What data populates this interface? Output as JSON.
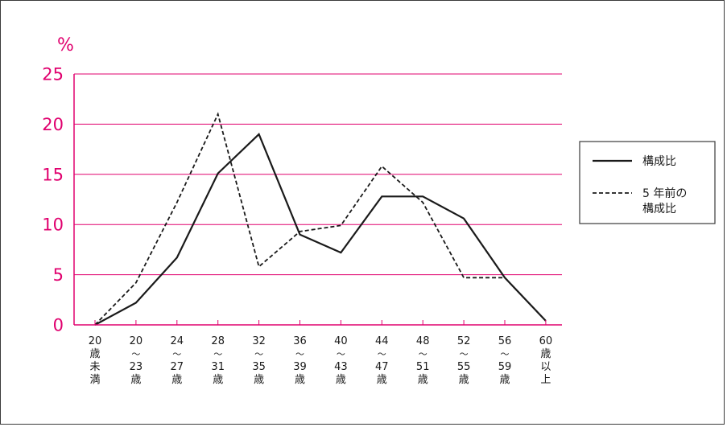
{
  "chart_data": {
    "type": "line",
    "y_unit": "%",
    "ylim": [
      0,
      25
    ],
    "yticks": [
      "0",
      "5",
      "10",
      "15",
      "20",
      "25"
    ],
    "grid": true,
    "legend_position": "right",
    "categories": [
      [
        "20",
        "歳",
        "未",
        "満"
      ],
      [
        "20",
        "〜",
        "23",
        "歳"
      ],
      [
        "24",
        "〜",
        "27",
        "歳"
      ],
      [
        "28",
        "〜",
        "31",
        "歳"
      ],
      [
        "32",
        "〜",
        "35",
        "歳"
      ],
      [
        "36",
        "〜",
        "39",
        "歳"
      ],
      [
        "40",
        "〜",
        "43",
        "歳"
      ],
      [
        "44",
        "〜",
        "47",
        "歳"
      ],
      [
        "48",
        "〜",
        "51",
        "歳"
      ],
      [
        "52",
        "〜",
        "55",
        "歳"
      ],
      [
        "56",
        "〜",
        "59",
        "歳"
      ],
      [
        "60",
        "歳",
        "以",
        "上"
      ]
    ],
    "series": [
      {
        "name": "構成比",
        "legend_lines": [
          "構成比"
        ],
        "style": "solid",
        "color": "#1a1a1a",
        "values": [
          0,
          2.2,
          6.7,
          15.1,
          19.0,
          9.0,
          7.2,
          12.8,
          12.8,
          10.6,
          4.7,
          0.4
        ]
      },
      {
        "name": "5 年前の構成比",
        "legend_lines": [
          "5 年前の",
          "構成比"
        ],
        "style": "dashed",
        "color": "#1a1a1a",
        "values": [
          0,
          4.2,
          12.2,
          21.0,
          5.8,
          9.3,
          9.9,
          15.8,
          12.2,
          4.7,
          4.7,
          0.4
        ]
      }
    ],
    "colors": {
      "axis": "#e0006e",
      "grid": "#e0006e",
      "tick_text": "#e0006e",
      "line": "#1a1a1a"
    }
  }
}
